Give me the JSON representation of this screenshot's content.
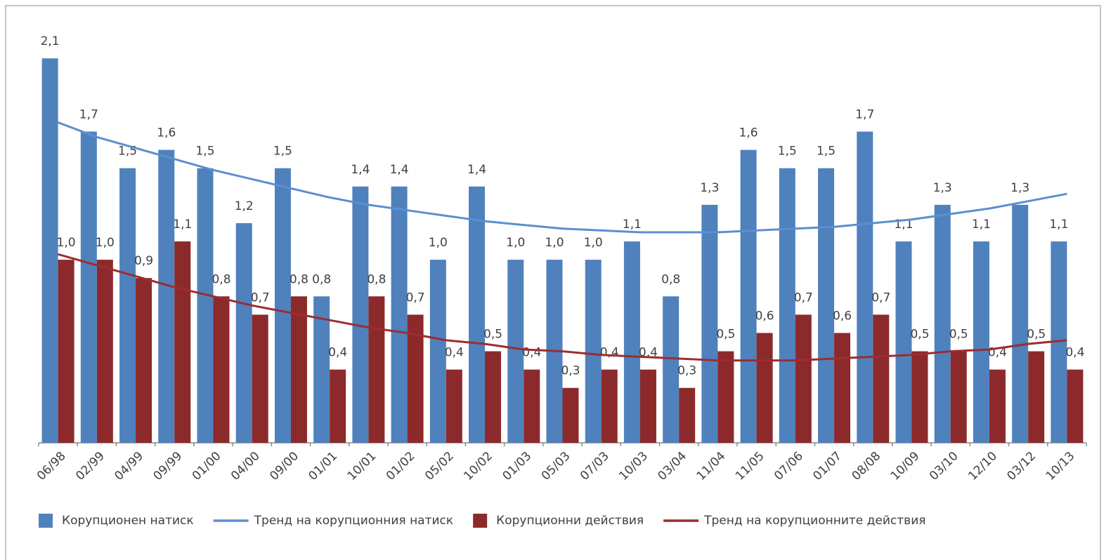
{
  "chart_data": {
    "type": "bar",
    "categories": [
      "06/98",
      "02/99",
      "04/99",
      "09/99",
      "01/00",
      "04/00",
      "09/00",
      "01/01",
      "10/01",
      "01/02",
      "05/02",
      "10/02",
      "01/03",
      "05/03",
      "07/03",
      "10/03",
      "03/04",
      "11/04",
      "11/05",
      "07/06",
      "01/07",
      "08/08",
      "10/09",
      "03/10",
      "12/10",
      "03/12",
      "10/13"
    ],
    "series": [
      {
        "name": "Корупционен натиск",
        "type": "bar",
        "color": "#4f81bd",
        "values": [
          2.1,
          1.7,
          1.5,
          1.6,
          1.5,
          1.2,
          1.5,
          0.8,
          1.4,
          1.4,
          1.0,
          1.4,
          1.0,
          1.0,
          1.0,
          1.1,
          0.8,
          1.3,
          1.6,
          1.5,
          1.5,
          1.7,
          1.1,
          1.3,
          1.1,
          1.3,
          1.1
        ],
        "value_labels": [
          "2,1",
          "1,7",
          "1,5",
          "1,6",
          "1,5",
          "1,2",
          "1,5",
          "0,8",
          "1,4",
          "1,4",
          "1,0",
          "1,4",
          "1,0",
          "1,0",
          "1,0",
          "1,1",
          "0,8",
          "1,3",
          "1,6",
          "1,5",
          "1,5",
          "1,7",
          "1,1",
          "1,3",
          "1,1",
          "1,3",
          "1,1"
        ]
      },
      {
        "name": "Тренд на корупционния натиск",
        "type": "line",
        "color": "#5b8fd0",
        "values": [
          1.75,
          1.67,
          1.61,
          1.55,
          1.49,
          1.44,
          1.39,
          1.34,
          1.3,
          1.27,
          1.24,
          1.21,
          1.19,
          1.17,
          1.16,
          1.15,
          1.15,
          1.15,
          1.16,
          1.17,
          1.18,
          1.2,
          1.22,
          1.25,
          1.28,
          1.32,
          1.36
        ]
      },
      {
        "name": "Корупционни действия",
        "type": "bar",
        "color": "#8c2a2b",
        "values": [
          1.0,
          1.0,
          0.9,
          1.1,
          0.8,
          0.7,
          0.8,
          0.4,
          0.8,
          0.7,
          0.4,
          0.5,
          0.4,
          0.3,
          0.4,
          0.4,
          0.3,
          0.5,
          0.6,
          0.7,
          0.6,
          0.7,
          0.5,
          0.5,
          0.4,
          0.5,
          0.4
        ],
        "value_labels": [
          "1,0",
          "1,0",
          "0,9",
          "1,1",
          "0,8",
          "0,7",
          "0,8",
          "0,4",
          "0,8",
          "0,7",
          "0,4",
          "0,5",
          "0,4",
          "0,3",
          "0,4",
          "0,4",
          "0,3",
          "0,5",
          "0,6",
          "0,7",
          "0,6",
          "0,7",
          "0,5",
          "0,5",
          "0,4",
          "0,5",
          "0,4"
        ]
      },
      {
        "name": "Тренд на корупционните действия",
        "type": "line",
        "color": "#9b2d30",
        "values": [
          1.03,
          0.97,
          0.91,
          0.85,
          0.8,
          0.75,
          0.71,
          0.67,
          0.63,
          0.6,
          0.56,
          0.54,
          0.51,
          0.5,
          0.48,
          0.47,
          0.46,
          0.45,
          0.45,
          0.45,
          0.46,
          0.47,
          0.48,
          0.5,
          0.51,
          0.54,
          0.56
        ]
      }
    ],
    "ylim": [
      0,
      2.3
    ],
    "legend": "bottom"
  }
}
